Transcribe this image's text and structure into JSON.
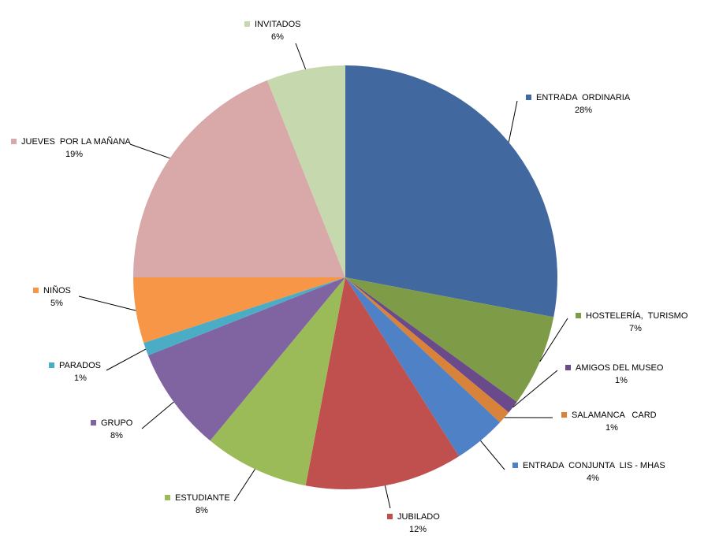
{
  "chart_data": {
    "type": "pie",
    "categories": [
      "ENTRADA  ORDINARIA",
      "HOSTELERÍA,  TURISMO",
      "AMIGOS DEL MUSEO",
      "SALAMANCA   CARD",
      "ENTRADA  CONJUNTA  LIS - MHAS",
      "JUBILADO",
      "ESTUDIANTE",
      "GRUPO",
      "PARADOS",
      "NIÑOS",
      "JUEVES  POR LA MAÑANA",
      "INVITADOS"
    ],
    "values": [
      28,
      7,
      1,
      1,
      4,
      12,
      8,
      8,
      1,
      5,
      19,
      6
    ],
    "value_labels": [
      "28%",
      "7%",
      "1%",
      "1%",
      "4%",
      "12%",
      "8%",
      "8%",
      "1%",
      "5%",
      "19%",
      "6%"
    ],
    "colors": [
      "#4169a0",
      "#7e9c48",
      "#6a4a8a",
      "#d8823a",
      "#4f81c6",
      "#c0504d",
      "#9bbb59",
      "#8064a2",
      "#4bacc6",
      "#f79646",
      "#d9a8a8",
      "#c6d8ad"
    ]
  }
}
